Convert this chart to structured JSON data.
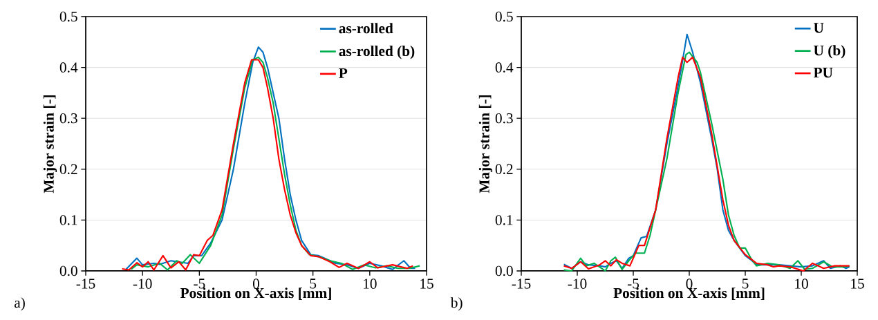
{
  "chart_data": [
    {
      "type": "line",
      "xlabel": "Position on X-axis [mm]",
      "ylabel": "Major strain [-]",
      "annotations": [
        "a)"
      ],
      "xlim": [
        -15,
        15
      ],
      "ylim": [
        0,
        0.5
      ],
      "xticks": [
        -15,
        -10,
        -5,
        0,
        5,
        10,
        15
      ],
      "yticks": [
        {
          "value": 0,
          "label": "0.0"
        },
        0.1,
        0.2,
        0.3,
        0.4,
        0.5
      ],
      "grid": "y",
      "legend": "top right",
      "series": [
        {
          "name": "as-rolled",
          "color": "#0070c0",
          "x": [
            -11.5,
            -10.5,
            -10,
            -9,
            -8.5,
            -7.5,
            -6,
            -5.5,
            -4.8,
            -4,
            -3,
            -2,
            -1,
            -0.3,
            0.2,
            0.6,
            1,
            1.5,
            2,
            2.5,
            3,
            3.5,
            4,
            4.8,
            5.5,
            6,
            7,
            8,
            9,
            10,
            11,
            12,
            13,
            13.6,
            14
          ],
          "values": [
            0.002,
            0.025,
            0.012,
            0.015,
            0.013,
            0.02,
            0.015,
            0.03,
            0.03,
            0.055,
            0.1,
            0.2,
            0.33,
            0.41,
            0.44,
            0.43,
            0.4,
            0.35,
            0.3,
            0.22,
            0.15,
            0.1,
            0.06,
            0.032,
            0.03,
            0.025,
            0.015,
            0.012,
            0.005,
            0.015,
            0.01,
            0.003,
            0.02,
            0.005,
            0.005
          ]
        },
        {
          "name": "as-rolled (b)",
          "color": "#00b050",
          "x": [
            -11,
            -10.5,
            -9.5,
            -8.5,
            -7.8,
            -7,
            -6.5,
            -5.8,
            -5,
            -4,
            -3,
            -2,
            -1,
            -0.3,
            0.2,
            0.6,
            1,
            1.5,
            2,
            2.5,
            3,
            3.5,
            4,
            4.7,
            5.5,
            6.5,
            7.5,
            8.5,
            9.5,
            10.5,
            11.5,
            12.5,
            13.5,
            14.4
          ],
          "values": [
            0.003,
            0.012,
            0.008,
            0.015,
            0.002,
            0.02,
            0.015,
            0.032,
            0.015,
            0.05,
            0.11,
            0.24,
            0.36,
            0.415,
            0.42,
            0.41,
            0.38,
            0.33,
            0.26,
            0.19,
            0.13,
            0.08,
            0.05,
            0.032,
            0.028,
            0.02,
            0.015,
            0.003,
            0.012,
            0.006,
            0.01,
            0.005,
            0.005,
            0.01
          ]
        },
        {
          "name": "P",
          "color": "#ff0000",
          "x": [
            -11.8,
            -11.2,
            -10.5,
            -10,
            -9.5,
            -9,
            -8.2,
            -7.5,
            -6.8,
            -6.2,
            -5.5,
            -5,
            -4.3,
            -3.8,
            -3,
            -2,
            -1,
            -0.4,
            0.2,
            0.6,
            1,
            1.5,
            2,
            2.5,
            3,
            3.5,
            4,
            4.8,
            5.5,
            6.5,
            7.3,
            8,
            9,
            10,
            10.7,
            12,
            13.3,
            13.8
          ],
          "values": [
            0.004,
            0.002,
            0.016,
            0.008,
            0.018,
            0.002,
            0.03,
            0.006,
            0.018,
            0.002,
            0.032,
            0.03,
            0.06,
            0.07,
            0.12,
            0.25,
            0.37,
            0.415,
            0.415,
            0.4,
            0.36,
            0.3,
            0.22,
            0.16,
            0.11,
            0.075,
            0.05,
            0.03,
            0.028,
            0.018,
            0.007,
            0.015,
            0.005,
            0.018,
            0.006,
            0.012,
            0.005,
            0.01
          ]
        }
      ]
    },
    {
      "type": "line",
      "xlabel": "Position on X-axis [mm]",
      "ylabel": "Major strain [-]",
      "annotations": [
        "b)"
      ],
      "xlim": [
        -15,
        15
      ],
      "ylim": [
        0,
        0.5
      ],
      "xticks": [
        -15,
        -10,
        -5,
        0,
        5,
        10,
        15
      ],
      "yticks": [
        {
          "value": 0,
          "label": "0.0"
        },
        0.1,
        0.2,
        0.3,
        0.4,
        0.5
      ],
      "grid": "y",
      "legend": "top right",
      "series": [
        {
          "name": "U",
          "color": "#0070c0",
          "x": [
            -11.2,
            -10.5,
            -9.7,
            -9,
            -8,
            -7.5,
            -7,
            -6.5,
            -6,
            -5.4,
            -5,
            -4.3,
            -3.8,
            -3,
            -2,
            -1.2,
            -0.7,
            -0.2,
            0.3,
            1,
            2,
            2.5,
            3,
            3.5,
            4,
            5,
            5.5,
            6,
            7,
            8,
            9,
            10,
            11,
            12,
            12.6,
            13.5,
            14,
            14.3
          ],
          "values": [
            0.013,
            0.005,
            0.018,
            0.012,
            0.01,
            0.008,
            0.015,
            0.02,
            0.005,
            0.025,
            0.03,
            0.065,
            0.068,
            0.12,
            0.25,
            0.34,
            0.4,
            0.465,
            0.43,
            0.37,
            0.26,
            0.2,
            0.12,
            0.08,
            0.06,
            0.03,
            0.022,
            0.012,
            0.012,
            0.012,
            0.01,
            0.008,
            0.01,
            0.02,
            0.005,
            0.01,
            0.005,
            0.008
          ]
        },
        {
          "name": "U (b)",
          "color": "#00b050",
          "x": [
            -11.2,
            -10.5,
            -9.7,
            -9.2,
            -8.5,
            -7.5,
            -7,
            -6.6,
            -6,
            -5.4,
            -4.8,
            -4,
            -3.5,
            -3,
            -2,
            -1,
            -0.3,
            0,
            0.7,
            1,
            2,
            3,
            3.5,
            4,
            4.5,
            5,
            5.5,
            6,
            7,
            8,
            9,
            9.7,
            10.3,
            11,
            12,
            12.8,
            14,
            14.3
          ],
          "values": [
            0.002,
            0.0,
            0.025,
            0.01,
            0.015,
            0.0,
            0.02,
            0.027,
            0.003,
            0.02,
            0.035,
            0.035,
            0.07,
            0.12,
            0.22,
            0.35,
            0.425,
            0.43,
            0.41,
            0.39,
            0.29,
            0.18,
            0.11,
            0.07,
            0.045,
            0.045,
            0.025,
            0.01,
            0.015,
            0.012,
            0.005,
            0.02,
            0.003,
            0.005,
            0.018,
            0.008,
            0.008,
            0.01
          ]
        },
        {
          "name": "PU",
          "color": "#ff0000",
          "x": [
            -11.2,
            -10.5,
            -9.7,
            -9,
            -8,
            -7.5,
            -7,
            -6.5,
            -6,
            -5.3,
            -4.5,
            -4,
            -3,
            -2,
            -1,
            -0.6,
            -0.2,
            0.3,
            1,
            2,
            3,
            3.5,
            4,
            5,
            6,
            7,
            7.5,
            8,
            9,
            10.2,
            11,
            12,
            13,
            14.3
          ],
          "values": [
            0.01,
            0.005,
            0.018,
            0.004,
            0.012,
            0.02,
            0.01,
            0.022,
            0.015,
            0.01,
            0.05,
            0.05,
            0.12,
            0.26,
            0.38,
            0.42,
            0.41,
            0.42,
            0.38,
            0.27,
            0.14,
            0.09,
            0.06,
            0.032,
            0.015,
            0.012,
            0.008,
            0.01,
            0.008,
            0.0,
            0.015,
            0.005,
            0.01,
            0.01
          ]
        }
      ]
    }
  ]
}
